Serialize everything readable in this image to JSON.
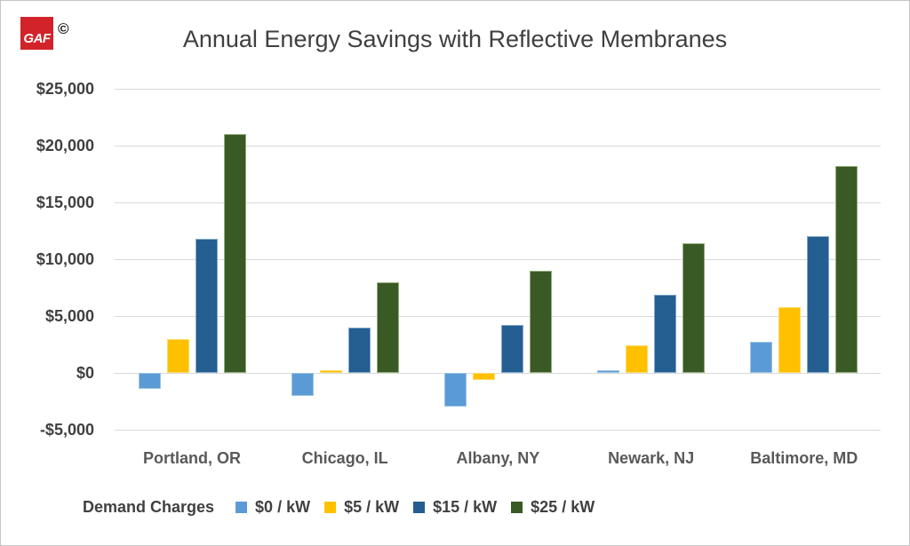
{
  "logo": {
    "text": "GAF",
    "copyright": "©",
    "background": "#d2232a"
  },
  "legend": {
    "title": "Demand Charges"
  },
  "chart_data": {
    "type": "bar",
    "title": "Annual Energy Savings with Reflective Membranes",
    "xlabel": "",
    "ylabel": "",
    "categories": [
      "Portland, OR",
      "Chicago, IL",
      "Albany, NY",
      "Newark, NJ",
      "Baltimore, MD"
    ],
    "series": [
      {
        "name": "$0 / kW",
        "color": "#5b9bd5",
        "border": "#9dc3e6",
        "values": [
          -1400,
          -2000,
          -3000,
          200,
          2700
        ]
      },
      {
        "name": "$5 / kW",
        "color": "#ffc000",
        "border": "#ffd966",
        "values": [
          3000,
          200,
          -600,
          2400,
          5800
        ]
      },
      {
        "name": "$15 / kW",
        "color": "#255e91",
        "border": "#7fa8cc",
        "values": [
          11800,
          4000,
          4200,
          6900,
          12000
        ]
      },
      {
        "name": "$25 / kW",
        "color": "#3a5a25",
        "border": "#94ad7a",
        "values": [
          21000,
          8000,
          9000,
          11400,
          18200
        ]
      }
    ],
    "ylim": [
      -5000,
      25000
    ],
    "ytick_step": 5000,
    "ytick_labels": [
      "$25,000",
      "$20,000",
      "$15,000",
      "$10,000",
      "$5,000",
      "$0",
      "-$5,000"
    ],
    "grid": true,
    "legend_position": "bottom",
    "legend_title": "Demand Charges"
  }
}
